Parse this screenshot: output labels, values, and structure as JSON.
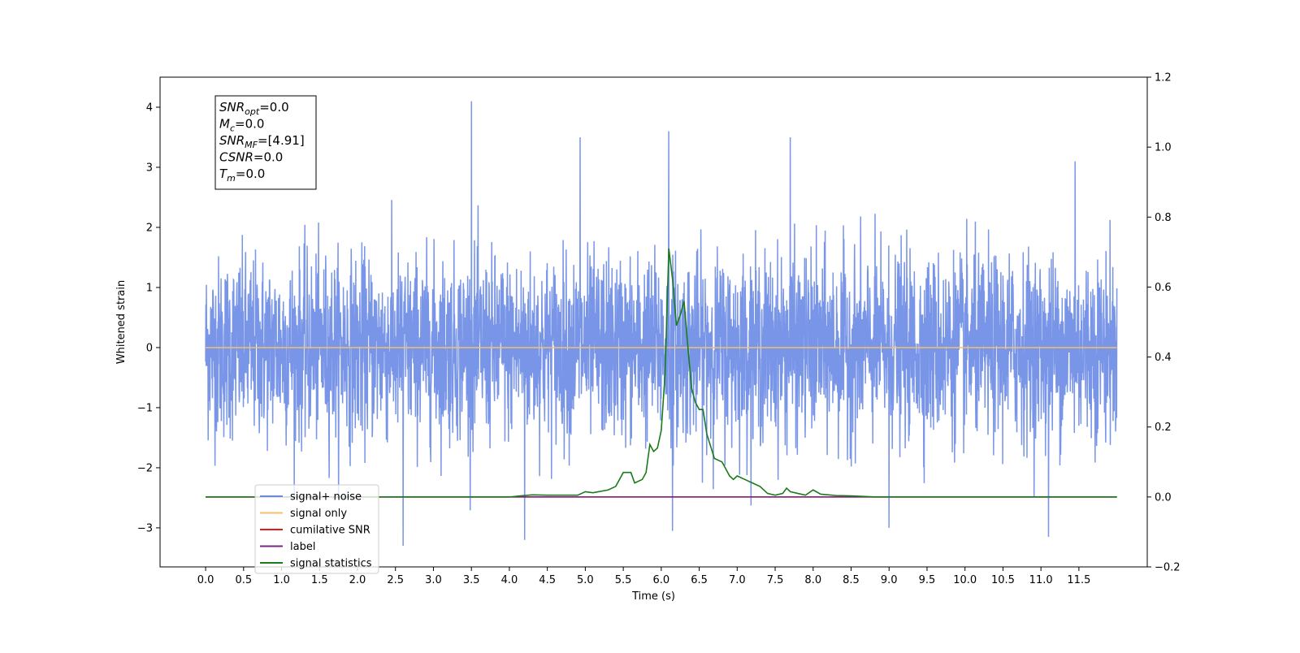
{
  "chart_data": {
    "type": "line",
    "xlabel": "Time (s)",
    "ylabel": "Whitened strain",
    "xlim": [
      -0.6,
      12.4
    ],
    "ylim": [
      -3.65,
      4.5
    ],
    "y2lim": [
      -0.2,
      1.2
    ],
    "x_ticks": [
      0.0,
      0.5,
      1.0,
      1.5,
      2.0,
      2.5,
      3.0,
      3.5,
      4.0,
      4.5,
      5.0,
      5.5,
      6.0,
      6.5,
      7.0,
      7.5,
      8.0,
      8.5,
      9.0,
      9.5,
      10.0,
      10.5,
      11.0,
      11.5
    ],
    "x_tick_labels": [
      "0.0",
      "0.5",
      "1.0",
      "1.5",
      "2.0",
      "2.5",
      "3.0",
      "3.5",
      "4.0",
      "4.5",
      "5.0",
      "5.5",
      "6.0",
      "6.5",
      "7.0",
      "7.5",
      "8.0",
      "8.5",
      "9.0",
      "9.5",
      "10.0",
      "10.5",
      "11.0",
      "11.5"
    ],
    "y_ticks": [
      -3,
      -2,
      -1,
      0,
      1,
      2,
      3,
      4
    ],
    "y_tick_labels": [
      "−3",
      "−2",
      "−1",
      "0",
      "1",
      "2",
      "3",
      "4"
    ],
    "y2_ticks": [
      -0.2,
      0.0,
      0.2,
      0.4,
      0.6,
      0.8,
      1.0,
      1.2
    ],
    "y2_tick_labels": [
      "−0.2",
      "0.0",
      "0.2",
      "0.4",
      "0.6",
      "0.8",
      "1.0",
      "1.2"
    ],
    "grid": false,
    "legend_position": "lower-left",
    "series": [
      {
        "name": "signal+ noise",
        "axis": "left",
        "color": "#6a89e5",
        "kind": "noise",
        "x_range": [
          0.0,
          12.0
        ],
        "typical_range": [
          -1.5,
          1.6
        ],
        "extremes": [
          {
            "x": 3.5,
            "y": 4.1
          },
          {
            "x": 6.1,
            "y": 3.6
          },
          {
            "x": 4.93,
            "y": 3.5
          },
          {
            "x": 7.7,
            "y": 3.5
          },
          {
            "x": 11.45,
            "y": 3.1
          },
          {
            "x": 2.6,
            "y": -3.3
          },
          {
            "x": 4.2,
            "y": -3.2
          },
          {
            "x": 11.1,
            "y": -3.15
          },
          {
            "x": 9.0,
            "y": -3.0
          },
          {
            "x": 6.15,
            "y": -3.05
          }
        ]
      },
      {
        "name": "signal only",
        "axis": "left",
        "color": "#f5bf6e",
        "x": [
          0.0,
          12.0
        ],
        "values": [
          0.0,
          0.0
        ]
      },
      {
        "name": "cumilative SNR",
        "axis": "right",
        "color": "#e41a1c",
        "x": [
          0.0,
          12.0
        ],
        "values": [
          0.0,
          0.0
        ]
      },
      {
        "name": "label",
        "axis": "right",
        "color": "#7b2183",
        "x": [
          0.0,
          12.0
        ],
        "values": [
          0.0,
          0.0
        ]
      },
      {
        "name": "signal statistics",
        "axis": "right",
        "color": "#1b7a1b",
        "x": [
          0.0,
          2.0,
          3.0,
          4.0,
          4.3,
          4.5,
          4.9,
          5.0,
          5.1,
          5.3,
          5.4,
          5.5,
          5.6,
          5.65,
          5.75,
          5.8,
          5.85,
          5.9,
          5.95,
          6.0,
          6.05,
          6.1,
          6.15,
          6.2,
          6.25,
          6.3,
          6.35,
          6.4,
          6.45,
          6.5,
          6.55,
          6.6,
          6.7,
          6.8,
          6.9,
          6.95,
          7.0,
          7.1,
          7.2,
          7.3,
          7.4,
          7.5,
          7.6,
          7.65,
          7.7,
          7.8,
          7.9,
          8.0,
          8.1,
          8.3,
          8.5,
          8.8,
          12.0
        ],
        "values": [
          0.0,
          0.0,
          0.0,
          0.0,
          0.006,
          0.005,
          0.005,
          0.015,
          0.012,
          0.02,
          0.03,
          0.07,
          0.07,
          0.04,
          0.05,
          0.07,
          0.15,
          0.13,
          0.14,
          0.19,
          0.35,
          0.71,
          0.62,
          0.49,
          0.52,
          0.56,
          0.43,
          0.31,
          0.27,
          0.25,
          0.25,
          0.18,
          0.11,
          0.1,
          0.06,
          0.05,
          0.06,
          0.05,
          0.04,
          0.03,
          0.01,
          0.005,
          0.01,
          0.025,
          0.015,
          0.01,
          0.005,
          0.02,
          0.008,
          0.004,
          0.003,
          0.0,
          0.0
        ]
      }
    ],
    "annotation_box": {
      "position": "top-left",
      "lines": [
        {
          "sym": "SNR",
          "sub": "opt",
          "rest": "=0.0"
        },
        {
          "sym": "M",
          "sub": "c",
          "rest": "=0.0"
        },
        {
          "sym": "SNR",
          "sub": "MF",
          "rest": "=[4.91]"
        },
        {
          "sym": "CSNR",
          "sub": "",
          "rest": "=0.0"
        },
        {
          "sym": "T",
          "sub": "m",
          "rest": "=0.0"
        }
      ]
    }
  }
}
